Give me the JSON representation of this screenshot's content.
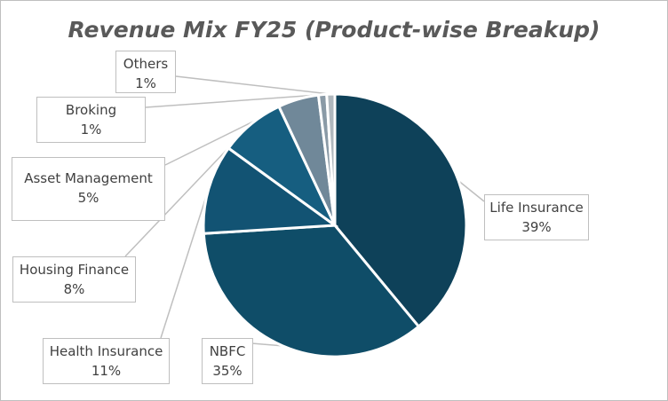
{
  "chart_data": {
    "type": "pie",
    "title": "Revenue Mix FY25 (Product-wise Breakup)",
    "slices": [
      {
        "label": "Life Insurance",
        "value": 39,
        "display": "39%",
        "color": "#0e4159"
      },
      {
        "label": "NBFC",
        "value": 35,
        "display": "35%",
        "color": "#0f4d68"
      },
      {
        "label": "Health Insurance",
        "value": 11,
        "display": "11%",
        "color": "#125373"
      },
      {
        "label": "Housing Finance",
        "value": 8,
        "display": "8%",
        "color": "#165e80"
      },
      {
        "label": "Asset Management",
        "value": 5,
        "display": "5%",
        "color": "#708899"
      },
      {
        "label": "Broking",
        "value": 1,
        "display": "1%",
        "color": "#8a9aa6"
      },
      {
        "label": "Others",
        "value": 1,
        "display": "1%",
        "color": "#b0b8be"
      }
    ],
    "legend": "none",
    "data_labels": "callouts with leader lines"
  }
}
